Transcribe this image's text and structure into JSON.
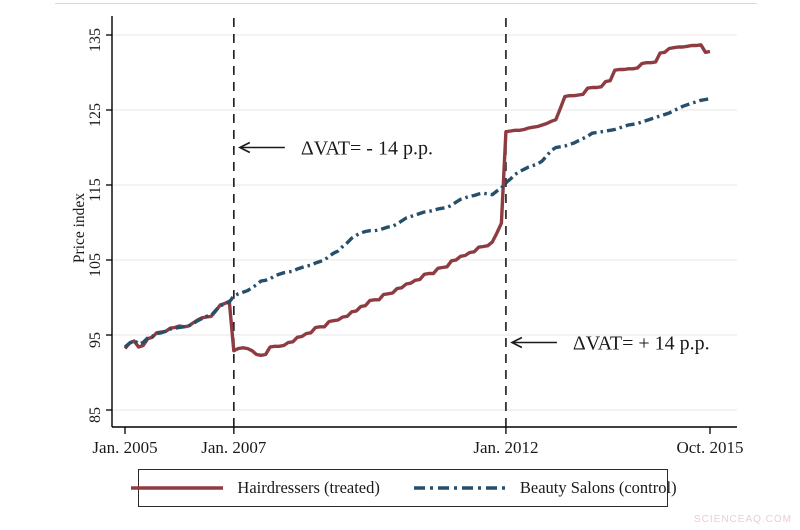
{
  "watermark": "SCIENCEAQ.COM",
  "chart_data": {
    "type": "line",
    "title": "",
    "xlabel": "",
    "ylabel": "Price index",
    "ylim": [
      85,
      135
    ],
    "yticks": [
      85,
      95,
      105,
      115,
      125,
      135
    ],
    "grid": true,
    "legend_position": "bottom",
    "x_unit": "month",
    "x_start": "Jan. 2005",
    "x_total_months": 129,
    "xticks": [
      {
        "month": 0,
        "label": "Jan. 2005"
      },
      {
        "month": 24,
        "label": "Jan. 2007"
      },
      {
        "month": 84,
        "label": "Jan. 2012"
      },
      {
        "month": 129,
        "label": "Oct. 2015"
      }
    ],
    "vlines": [
      {
        "month": 24,
        "style": "dashed",
        "color": "#1a1a1a"
      },
      {
        "month": 84,
        "style": "dashed",
        "color": "#1a1a1a"
      }
    ],
    "annotations": [
      {
        "text": "ΔVAT= - 14 p.p.",
        "arrow_to_month": 24,
        "y": 120,
        "side": "right"
      },
      {
        "text": "ΔVAT= + 14 p.p.",
        "arrow_to_month": 84,
        "y": 94,
        "side": "right"
      }
    ],
    "series": [
      {
        "name": "Hairdressers (treated)",
        "color": "#8e3b42",
        "style": "solid",
        "values": [
          93.2,
          93.9,
          94.2,
          93.4,
          93.6,
          94.5,
          94.7,
          95.3,
          95.4,
          95.5,
          95.9,
          96.0,
          96.2,
          96.1,
          96.2,
          96.6,
          97.0,
          97.3,
          97.4,
          97.5,
          98.2,
          99.0,
          99.2,
          99.5,
          92.9,
          93.2,
          93.3,
          93.2,
          92.9,
          92.4,
          92.3,
          92.4,
          93.4,
          93.5,
          93.5,
          93.6,
          94.0,
          94.1,
          94.7,
          94.8,
          95.2,
          95.3,
          96.0,
          96.1,
          96.1,
          96.8,
          96.9,
          97.0,
          97.4,
          97.5,
          98.1,
          98.2,
          98.8,
          98.9,
          99.6,
          99.7,
          99.7,
          100.4,
          100.5,
          100.6,
          101.2,
          101.3,
          101.8,
          101.9,
          102.3,
          102.4,
          103.1,
          103.2,
          103.2,
          103.9,
          104.0,
          104.1,
          104.9,
          105.0,
          105.5,
          105.6,
          106.0,
          106.1,
          106.7,
          106.8,
          106.9,
          107.4,
          108.6,
          109.9,
          122.1,
          122.2,
          122.3,
          122.3,
          122.4,
          122.6,
          122.7,
          122.8,
          123.0,
          123.2,
          123.5,
          123.7,
          125.2,
          126.8,
          126.9,
          126.9,
          127.0,
          127.1,
          127.9,
          128.0,
          128.0,
          128.1,
          128.8,
          128.9,
          130.3,
          130.4,
          130.4,
          130.5,
          130.5,
          130.6,
          131.2,
          131.3,
          131.3,
          131.4,
          132.6,
          132.7,
          133.2,
          133.3,
          133.4,
          133.4,
          133.5,
          133.6,
          133.6,
          133.7,
          132.7,
          132.8
        ]
      },
      {
        "name": "Beauty Salons (control)",
        "color": "#254f6b",
        "style": "dash-dot",
        "values": [
          93.4,
          93.9,
          94.3,
          93.8,
          94.0,
          94.6,
          94.8,
          95.2,
          95.3,
          95.5,
          95.8,
          95.9,
          96.0,
          96.1,
          96.2,
          96.5,
          96.9,
          97.2,
          97.5,
          97.6,
          98.3,
          98.9,
          99.1,
          99.4,
          100.2,
          100.5,
          100.7,
          100.9,
          101.3,
          101.7,
          102.2,
          102.3,
          102.5,
          102.9,
          103.1,
          103.3,
          103.4,
          103.5,
          103.8,
          104.0,
          104.2,
          104.3,
          104.6,
          104.8,
          105.0,
          105.5,
          105.9,
          106.2,
          106.8,
          107.3,
          107.9,
          108.3,
          108.6,
          108.8,
          108.9,
          108.9,
          109.0,
          109.2,
          109.4,
          109.5,
          109.8,
          110.2,
          110.6,
          110.8,
          111.0,
          111.2,
          111.4,
          111.5,
          111.6,
          111.8,
          111.9,
          112.0,
          112.3,
          112.7,
          113.1,
          113.3,
          113.5,
          113.6,
          113.8,
          113.9,
          113.8,
          113.7,
          114.2,
          114.6,
          115.3,
          115.8,
          116.4,
          116.8,
          117.1,
          117.4,
          117.6,
          117.8,
          118.2,
          118.9,
          119.6,
          120.0,
          120.1,
          120.2,
          120.4,
          120.6,
          120.9,
          121.2,
          121.5,
          121.9,
          122.0,
          122.1,
          122.2,
          122.3,
          122.4,
          122.6,
          122.8,
          123.0,
          123.1,
          123.2,
          123.4,
          123.6,
          123.8,
          124.0,
          124.2,
          124.4,
          124.6,
          124.9,
          125.2,
          125.5,
          125.7,
          125.9,
          126.1,
          126.3,
          126.4,
          126.5
        ]
      }
    ]
  }
}
